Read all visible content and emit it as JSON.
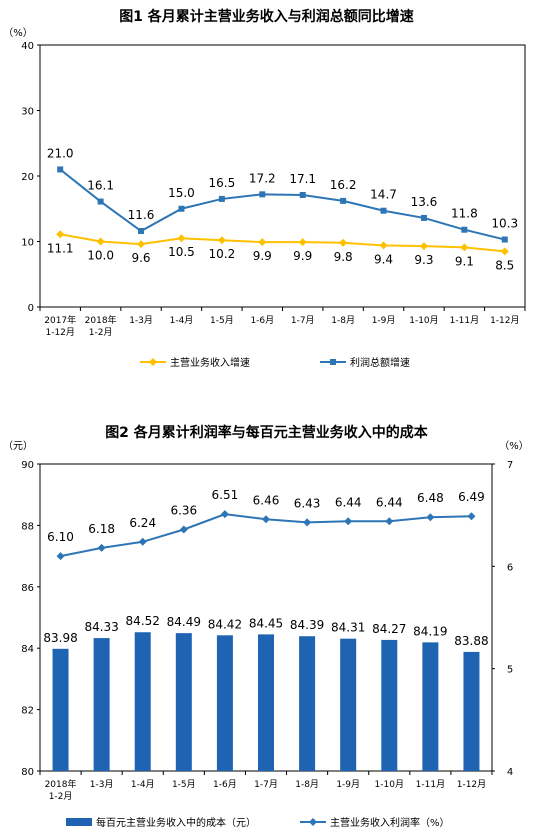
{
  "chart_data": [
    {
      "type": "line",
      "title": "图1  各月累计主营业务收入与利润总额同比增速",
      "y_unit": "（%）",
      "ylim": [
        0,
        40
      ],
      "yticks": [
        "0",
        "10",
        "20",
        "30",
        "40"
      ],
      "categories": [
        [
          "2017年",
          "1-12月"
        ],
        [
          "2018年",
          "1-2月"
        ],
        [
          "1-3月"
        ],
        [
          "1-4月"
        ],
        [
          "1-5月"
        ],
        [
          "1-6月"
        ],
        [
          "1-7月"
        ],
        [
          "1-8月"
        ],
        [
          "1-9月"
        ],
        [
          "1-10月"
        ],
        [
          "1-11月"
        ],
        [
          "1-12月"
        ]
      ],
      "series": [
        {
          "name": "主营业务收入增速",
          "color": "#FFC000",
          "marker": "diamond",
          "values": [
            11.1,
            10.0,
            9.6,
            10.5,
            10.2,
            9.9,
            9.9,
            9.8,
            9.4,
            9.3,
            9.1,
            8.5
          ],
          "labels": [
            "11.1",
            "10.0",
            "9.6",
            "10.5",
            "10.2",
            "9.9",
            "9.9",
            "9.8",
            "9.4",
            "9.3",
            "9.1",
            "8.5"
          ]
        },
        {
          "name": "利润总额增速",
          "color": "#2E75B6",
          "marker": "square",
          "values": [
            21.0,
            16.1,
            11.6,
            15.0,
            16.5,
            17.2,
            17.1,
            16.2,
            14.7,
            13.6,
            11.8,
            10.3
          ],
          "labels": [
            "21.0",
            "16.1",
            "11.6",
            "15.0",
            "16.5",
            "17.2",
            "17.1",
            "16.2",
            "14.7",
            "13.6",
            "11.8",
            "10.3"
          ]
        }
      ],
      "legend": "bottom",
      "grid": false
    },
    {
      "type": "bar",
      "title": "图2  各月累计利润率与每百元主营业务收入中的成本",
      "y_unit_left": "（元）",
      "y_unit_right": "（%）",
      "ylim_left": [
        80,
        90
      ],
      "yticks_left": [
        "80",
        "82",
        "84",
        "86",
        "88",
        "90"
      ],
      "ylim_right": [
        4,
        7
      ],
      "yticks_right": [
        "4",
        "5",
        "6",
        "7"
      ],
      "categories": [
        [
          "2018年",
          "1-2月"
        ],
        [
          "1-3月"
        ],
        [
          "1-4月"
        ],
        [
          "1-5月"
        ],
        [
          "1-6月"
        ],
        [
          "1-7月"
        ],
        [
          "1-8月"
        ],
        [
          "1-9月"
        ],
        [
          "1-10月"
        ],
        [
          "1-11月"
        ],
        [
          "1-12月"
        ]
      ],
      "series": [
        {
          "name": "每百元主营业务收入中的成本（元）",
          "type": "bar",
          "axis": "left",
          "color": "#1F64B2",
          "values": [
            83.98,
            84.33,
            84.52,
            84.49,
            84.42,
            84.45,
            84.39,
            84.31,
            84.27,
            84.19,
            83.88
          ],
          "labels": [
            "83.98",
            "84.33",
            "84.52",
            "84.49",
            "84.42",
            "84.45",
            "84.39",
            "84.31",
            "84.27",
            "84.19",
            "83.88"
          ]
        },
        {
          "name": "主营业务收入利润率（%）",
          "type": "line",
          "axis": "right",
          "color": "#2E75B6",
          "marker": "diamond",
          "values": [
            6.1,
            6.18,
            6.24,
            6.36,
            6.51,
            6.46,
            6.43,
            6.44,
            6.44,
            6.48,
            6.49
          ],
          "labels": [
            "6.10",
            "6.18",
            "6.24",
            "6.36",
            "6.51",
            "6.46",
            "6.43",
            "6.44",
            "6.44",
            "6.48",
            "6.49"
          ]
        }
      ],
      "legend": "bottom",
      "grid": false
    }
  ]
}
